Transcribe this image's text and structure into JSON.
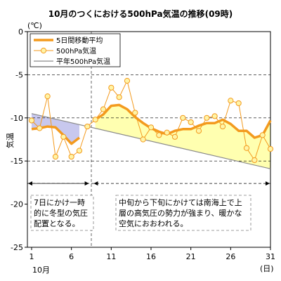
{
  "chart_data": {
    "type": "line",
    "title": "10月のつくにおける500hPa気温の推移(09時)",
    "unit_label": "(℃)",
    "ylabel": "気温",
    "xlabel_month": "10月",
    "xlabel_unit": "(日)",
    "xlim": [
      1,
      31
    ],
    "ylim": [
      -25,
      0
    ],
    "x_ticks": [
      1,
      6,
      11,
      16,
      21,
      26,
      31
    ],
    "y_ticks": [
      0,
      -5,
      -10,
      -15,
      -20,
      -25
    ],
    "legend": [
      "5日間移動平均",
      "500hPa気温",
      "平年500hPa気温"
    ],
    "series": [
      {
        "name": "500hPa気温",
        "x": [
          1,
          2,
          3,
          4,
          5,
          6,
          7,
          8,
          9,
          10,
          11,
          12,
          13,
          14,
          15,
          16,
          17,
          18,
          19,
          20,
          21,
          22,
          23,
          24,
          25,
          26,
          27,
          28,
          29,
          30,
          31
        ],
        "values": [
          -10.3,
          -11.2,
          -7.5,
          -14.5,
          -12.2,
          -14.5,
          -13.8,
          -11.0,
          -10.2,
          -9.0,
          -6.5,
          -7.6,
          -5.7,
          -9.4,
          -12.5,
          -11.1,
          -12.0,
          -11.7,
          -12.2,
          -10.0,
          -10.5,
          -11.5,
          -10.0,
          -9.8,
          -11.0,
          -8.0,
          -8.3,
          -13.5,
          -14.9,
          -12.0,
          -13.6
        ]
      },
      {
        "name": "5日間移動平均",
        "x": [
          1,
          2,
          3,
          4,
          5,
          6,
          7,
          8,
          9,
          10,
          11,
          12,
          13,
          14,
          15,
          16,
          17,
          18,
          19,
          20,
          21,
          22,
          23,
          24,
          25,
          26,
          27,
          28,
          29,
          30,
          31
        ],
        "values": [
          -11.3,
          -11.2,
          -11.0,
          -11.1,
          -12.0,
          -13.0,
          -12.3,
          null,
          -10.2,
          -9.6,
          -8.6,
          -8.5,
          -9.0,
          -9.9,
          -10.6,
          -11.2,
          -11.6,
          -11.9,
          -11.5,
          -11.3,
          -11.3,
          -10.9,
          -10.6,
          -10.6,
          -10.2,
          -10.7,
          -11.5,
          -11.5,
          -12.3,
          -12.0,
          -10.3
        ]
      },
      {
        "name": "平年500hPa気温",
        "x": [
          1,
          31
        ],
        "values": [
          -9.5,
          -15.9
        ]
      }
    ],
    "annotations": [
      {
        "lines": [
          "7日にかけ一時",
          "的に冬型の気圧",
          "配置となる。"
        ]
      },
      {
        "lines": [
          "中旬から下旬にかけては南海上で上",
          "層の高気圧の勢力が強まり、暖かな",
          "空気におおわれる。"
        ]
      }
    ],
    "colors": {
      "moving_avg": "#f39a1e",
      "daily_line": "#f39a1e",
      "daily_marker_fill": "#fff4a6",
      "normal_line": "#8a8a8a",
      "fill_above": "#ffffb0",
      "fill_below": "#c8c8ee",
      "annotation_border": "#808080"
    }
  }
}
